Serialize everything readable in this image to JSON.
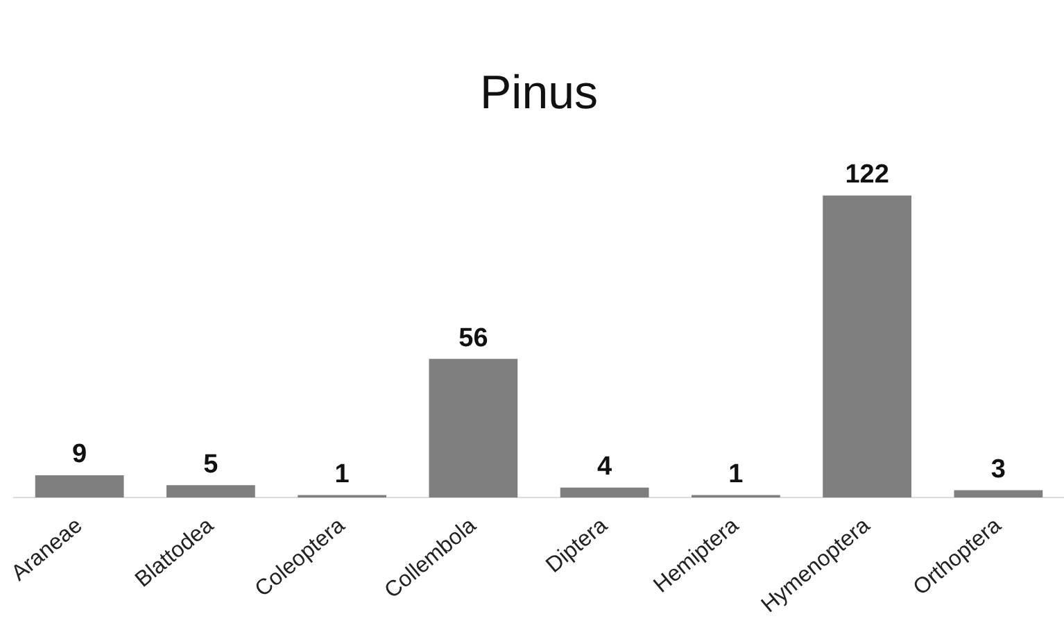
{
  "chart_data": {
    "type": "bar",
    "title": "Pinus",
    "categories": [
      "Araneae",
      "Blattodea",
      "Coleoptera",
      "Collembola",
      "Diptera",
      "Hemiptera",
      "Hymenoptera",
      "Orthoptera"
    ],
    "values": [
      9,
      5,
      1,
      56,
      4,
      1,
      122,
      3
    ],
    "color": "#7f7f7f",
    "data_labels": true,
    "grid": false,
    "legend": false
  }
}
